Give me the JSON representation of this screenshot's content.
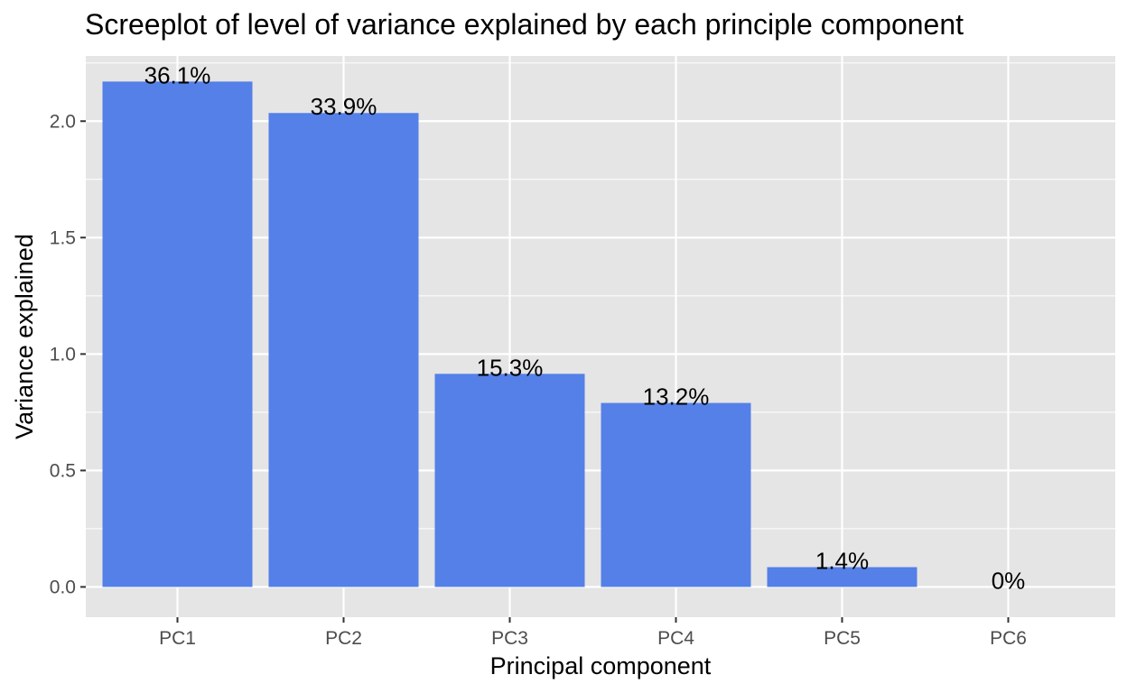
{
  "chart_data": {
    "type": "bar",
    "title": "Screeplot of level of variance explained by each principle component",
    "xlabel": "Principal component",
    "ylabel": "Variance explained",
    "categories": [
      "PC1",
      "PC2",
      "PC3",
      "PC4",
      "PC5",
      "PC6"
    ],
    "values": [
      2.17,
      2.035,
      0.915,
      0.79,
      0.085,
      0.0
    ],
    "data_labels": [
      "36.1%",
      "33.9%",
      "15.3%",
      "13.2%",
      "1.4%",
      "0%"
    ],
    "ylim": [
      -0.13,
      2.28
    ],
    "y_ticks": [
      0.0,
      0.5,
      1.0,
      1.5,
      2.0
    ],
    "y_tick_labels": [
      "0.0",
      "0.5",
      "1.0",
      "1.5",
      "2.0"
    ],
    "grid": true,
    "colors": {
      "bar": "#5480e8",
      "panel_background": "#e5e5e5",
      "grid_major": "#ffffff",
      "tick_label": "#4d4d4d",
      "tick_mark": "#333333"
    }
  }
}
